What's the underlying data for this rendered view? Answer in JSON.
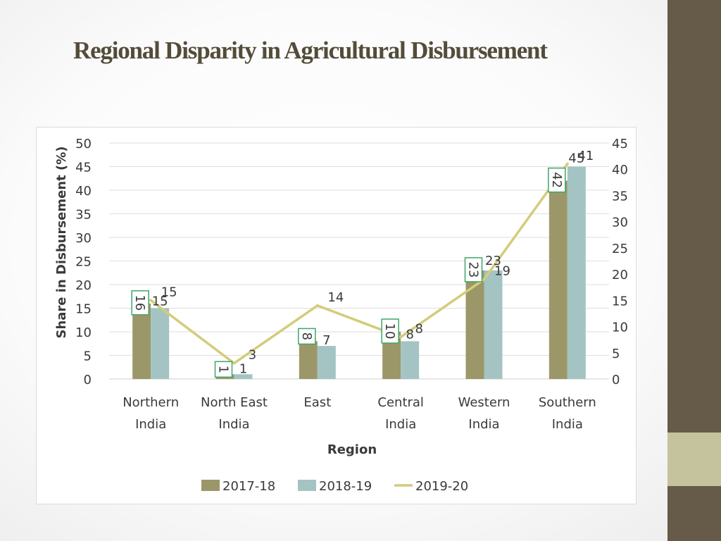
{
  "slide": {
    "title": "Regional Disparity in Agricultural Disbursement",
    "colors": {
      "side_bar": "#665b48",
      "side_accent": "#c5c39d",
      "title": "#534c3a"
    }
  },
  "chart_data": {
    "type": "bar",
    "title": "",
    "xlabel": "Region",
    "ylabel": "Share in Disbursement (%)",
    "categories": [
      "Northern India",
      "North East India",
      "East",
      "Central India",
      "Western India",
      "Southern India"
    ],
    "series": [
      {
        "name": "2017-18",
        "type": "bar",
        "axis": "left",
        "color": "#9c9768",
        "values": [
          16,
          1,
          8,
          10,
          23,
          42
        ]
      },
      {
        "name": "2018-19",
        "type": "bar",
        "axis": "left",
        "color": "#a3c4c3",
        "values": [
          15,
          1,
          7,
          8,
          23,
          45
        ]
      },
      {
        "name": "2019-20",
        "type": "line",
        "axis": "right",
        "color": "#d3cc7a",
        "values": [
          15,
          3,
          14,
          8,
          19,
          41
        ]
      }
    ],
    "ylim": [
      0,
      50
    ],
    "y2lim": [
      0,
      45
    ],
    "y_ticks": [
      "0",
      "5",
      "10",
      "15",
      "20",
      "25",
      "30",
      "35",
      "40",
      "45",
      "50"
    ],
    "y2_ticks": [
      "0",
      "5",
      "10",
      "15",
      "20",
      "25",
      "30",
      "35",
      "40",
      "45"
    ],
    "data_labels": {
      "2017-18": [
        "16",
        "1",
        "8",
        "10",
        "23",
        "42"
      ],
      "2018-19": [
        "15",
        "1",
        "7",
        "8",
        "23",
        "45"
      ],
      "2019-20": [
        "15",
        "3",
        "14",
        "8",
        "19",
        "41"
      ]
    },
    "grid": true,
    "legend_position": "bottom"
  }
}
